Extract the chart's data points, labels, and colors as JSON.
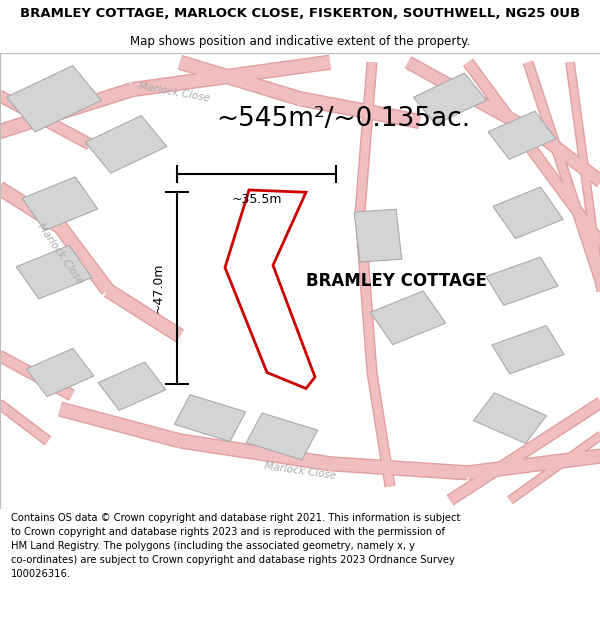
{
  "title": "BRAMLEY COTTAGE, MARLOCK CLOSE, FISKERTON, SOUTHWELL, NG25 0UB",
  "subtitle": "Map shows position and indicative extent of the property.",
  "area_label": "~545m²/~0.135ac.",
  "property_label": "BRAMLEY COTTAGE",
  "dim_height": "~47.0m",
  "dim_width": "~35.5m",
  "footer": "Contains OS data © Crown copyright and database right 2021. This information is subject\nto Crown copyright and database rights 2023 and is reproduced with the permission of\nHM Land Registry. The polygons (including the associated geometry, namely x, y\nco-ordinates) are subject to Crown copyright and database rights 2023 Ordnance Survey\n100026316.",
  "bg_color": "#eeece8",
  "building_color": "#d4d4d4",
  "building_outline": "#aaaaaa",
  "red_poly_color": "#cc0000",
  "dim_color": "#000000",
  "title_fontsize": 9.5,
  "subtitle_fontsize": 8.5,
  "area_label_fontsize": 19,
  "property_label_fontsize": 12,
  "footer_fontsize": 7.2
}
